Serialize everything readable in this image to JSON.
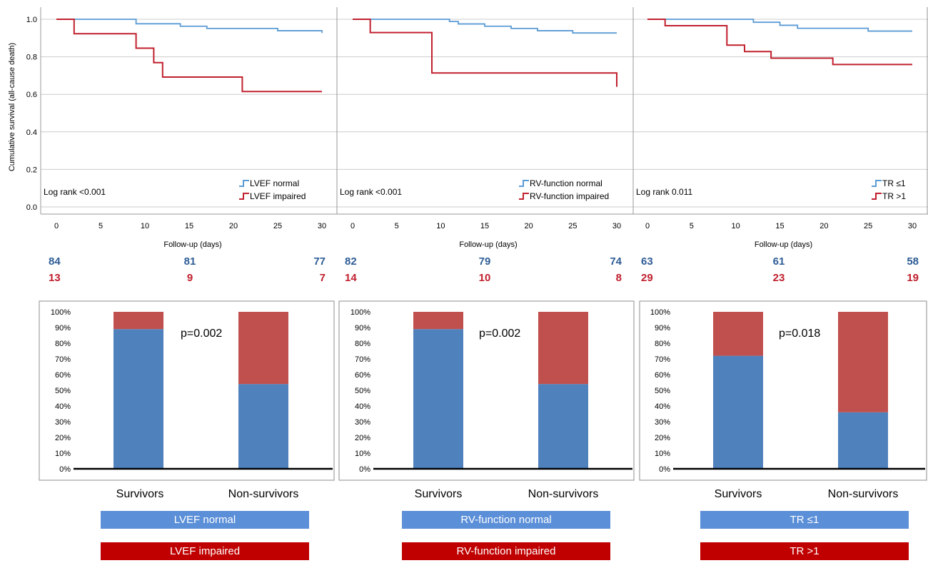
{
  "km_panels": [
    {
      "log_rank": "Log rank <0.001",
      "legend": [
        "LVEF normal",
        "LVEF impaired"
      ],
      "at_risk_normal": [
        "84",
        "81",
        "77"
      ],
      "at_risk_impaired": [
        "13",
        "9",
        "7"
      ]
    },
    {
      "log_rank": "Log rank <0.001",
      "legend": [
        "RV-function normal",
        "RV-function impaired"
      ],
      "at_risk_normal": [
        "82",
        "79",
        "74"
      ],
      "at_risk_impaired": [
        "14",
        "10",
        "8"
      ]
    },
    {
      "log_rank": "Log rank 0.011",
      "legend": [
        "TR ≤1",
        "TR >1"
      ],
      "at_risk_normal": [
        "63",
        "61",
        "58"
      ],
      "at_risk_impaired": [
        "29",
        "23",
        "19"
      ]
    }
  ],
  "bar_panels": [
    {
      "p_value": "p=0.002",
      "categories": [
        "Survivors",
        "Non-survivors"
      ],
      "box_labels": [
        "LVEF normal",
        "LVEF impaired"
      ]
    },
    {
      "p_value": "p=0.002",
      "categories": [
        "Survivors",
        "Non-survivors"
      ],
      "box_labels": [
        "RV-function normal",
        "RV-function impaired"
      ]
    },
    {
      "p_value": "p=0.018",
      "categories": [
        "Survivors",
        "Non-survivors"
      ],
      "box_labels": [
        "TR  ≤1",
        "TR  >1"
      ]
    }
  ],
  "colors": {
    "km_normal": "#5b9bd5",
    "km_impaired": "#c0202e",
    "bar_normal": "#4f81bd",
    "bar_impaired": "#c0504d",
    "box_normal": "#5b8fd8",
    "box_impaired": "#c00000"
  },
  "chart_data": [
    {
      "type": "line",
      "subtype": "kaplan-meier",
      "xlabel": "Follow-up (days)",
      "ylabel": "Cumulative survival (all-cause death)",
      "xlim": [
        0,
        30
      ],
      "ylim": [
        0,
        1
      ],
      "xticks": [
        0,
        5,
        10,
        15,
        20,
        25,
        30
      ],
      "yticks": [
        "0.0",
        "0.2",
        "0.4",
        "0.6",
        "0.8",
        "1.0"
      ],
      "annotation": "Log rank <0.001",
      "series": [
        {
          "name": "LVEF normal",
          "color": "#5b9bd5",
          "steps": [
            [
              0,
              1.0
            ],
            [
              9,
              0.976
            ],
            [
              14,
              0.963
            ],
            [
              17,
              0.951
            ],
            [
              25,
              0.939
            ],
            [
              30,
              0.927
            ]
          ]
        },
        {
          "name": "LVEF impaired",
          "color": "#c0202e",
          "steps": [
            [
              0,
              1.0
            ],
            [
              2,
              0.923
            ],
            [
              9,
              0.846
            ],
            [
              11,
              0.769
            ],
            [
              12,
              0.692
            ],
            [
              21,
              0.615
            ],
            [
              30,
              0.615
            ]
          ]
        }
      ]
    },
    {
      "type": "line",
      "subtype": "kaplan-meier",
      "xlabel": "Follow-up (days)",
      "ylabel": "",
      "xlim": [
        0,
        30
      ],
      "ylim": [
        0,
        1
      ],
      "xticks": [
        0,
        5,
        10,
        15,
        20,
        25,
        30
      ],
      "annotation": "Log rank <0.001",
      "series": [
        {
          "name": "RV-function normal",
          "color": "#5b9bd5",
          "steps": [
            [
              0,
              1.0
            ],
            [
              11,
              0.988
            ],
            [
              12,
              0.975
            ],
            [
              15,
              0.963
            ],
            [
              18,
              0.951
            ],
            [
              21,
              0.939
            ],
            [
              25,
              0.927
            ],
            [
              30,
              0.927
            ]
          ]
        },
        {
          "name": "RV-function impaired",
          "color": "#c0202e",
          "steps": [
            [
              0,
              1.0
            ],
            [
              2,
              0.929
            ],
            [
              9,
              0.714
            ],
            [
              30,
              0.714
            ],
            [
              30,
              0.64
            ]
          ]
        }
      ]
    },
    {
      "type": "line",
      "subtype": "kaplan-meier",
      "xlabel": "Follow-up (days)",
      "ylabel": "",
      "xlim": [
        0,
        30
      ],
      "ylim": [
        0,
        1
      ],
      "xticks": [
        0,
        5,
        10,
        15,
        20,
        25,
        30
      ],
      "annotation": "Log rank 0.011",
      "series": [
        {
          "name": "TR ≤1",
          "color": "#5b9bd5",
          "steps": [
            [
              0,
              1.0
            ],
            [
              12,
              0.984
            ],
            [
              15,
              0.968
            ],
            [
              17,
              0.952
            ],
            [
              25,
              0.937
            ],
            [
              30,
              0.937
            ]
          ]
        },
        {
          "name": "TR >1",
          "color": "#c0202e",
          "steps": [
            [
              0,
              1.0
            ],
            [
              2,
              0.966
            ],
            [
              9,
              0.862
            ],
            [
              11,
              0.828
            ],
            [
              14,
              0.793
            ],
            [
              21,
              0.759
            ],
            [
              30,
              0.759
            ]
          ]
        }
      ]
    },
    {
      "type": "bar",
      "stacked": true,
      "categories": [
        "Survivors",
        "Non-survivors"
      ],
      "ylim": [
        0,
        100
      ],
      "yticks": [
        "0%",
        "10%",
        "20%",
        "30%",
        "40%",
        "50%",
        "60%",
        "70%",
        "80%",
        "90%",
        "100%"
      ],
      "annotation": "p=0.002",
      "series": [
        {
          "name": "LVEF normal",
          "color": "#4f81bd",
          "values": [
            89,
            54
          ]
        },
        {
          "name": "LVEF impaired",
          "color": "#c0504d",
          "values": [
            11,
            46
          ]
        }
      ]
    },
    {
      "type": "bar",
      "stacked": true,
      "categories": [
        "Survivors",
        "Non-survivors"
      ],
      "ylim": [
        0,
        100
      ],
      "yticks": [
        "0%",
        "10%",
        "20%",
        "30%",
        "40%",
        "50%",
        "60%",
        "70%",
        "80%",
        "90%",
        "100%"
      ],
      "annotation": "p=0.002",
      "series": [
        {
          "name": "RV-function normal",
          "color": "#4f81bd",
          "values": [
            89,
            54
          ]
        },
        {
          "name": "RV-function impaired",
          "color": "#c0504d",
          "values": [
            11,
            46
          ]
        }
      ]
    },
    {
      "type": "bar",
      "stacked": true,
      "categories": [
        "Survivors",
        "Non-survivors"
      ],
      "ylim": [
        0,
        100
      ],
      "yticks": [
        "0%",
        "10%",
        "20%",
        "30%",
        "40%",
        "50%",
        "60%",
        "70%",
        "80%",
        "90%",
        "100%"
      ],
      "annotation": "p=0.018",
      "series": [
        {
          "name": "TR ≤1",
          "color": "#4f81bd",
          "values": [
            72,
            36
          ]
        },
        {
          "name": "TR >1",
          "color": "#c0504d",
          "values": [
            28,
            64
          ]
        }
      ]
    }
  ]
}
